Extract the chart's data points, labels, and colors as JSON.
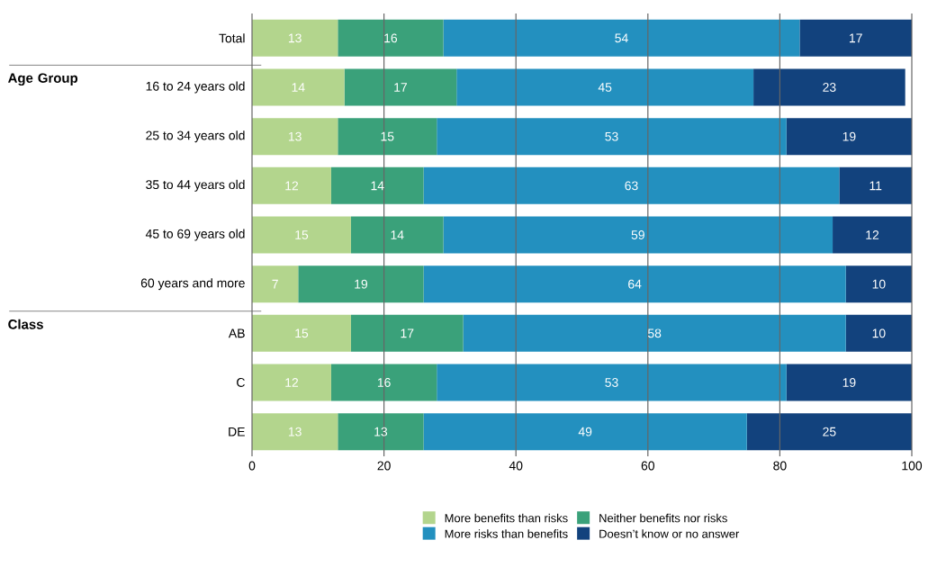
{
  "chart_data": {
    "type": "bar",
    "orientation": "horizontal",
    "stacked": true,
    "categories": [
      "Total",
      "16 to 24 years old",
      "25 to 34 years old",
      "35 to 44 years old",
      "45 to 69 years old",
      "60 years and more",
      "AB",
      "C",
      "DE"
    ],
    "series": [
      {
        "name": "More benefits than risks",
        "color": "#b3d58d",
        "values": [
          13,
          14,
          13,
          12,
          15,
          7,
          15,
          12,
          13
        ]
      },
      {
        "name": "Neither benefits nor risks",
        "color": "#3aa17a",
        "values": [
          16,
          17,
          15,
          14,
          14,
          19,
          17,
          16,
          13
        ]
      },
      {
        "name": "More risks than benefits",
        "color": "#2390bf",
        "values": [
          54,
          45,
          53,
          63,
          59,
          64,
          58,
          53,
          49
        ]
      },
      {
        "name": "Doesn’t know or no answer",
        "color": "#12427d",
        "values": [
          17,
          23,
          19,
          11,
          12,
          10,
          10,
          19,
          25
        ]
      }
    ],
    "annotations": [
      "Age Group",
      "Class"
    ],
    "xlim": [
      0,
      100
    ],
    "xticks": [
      0,
      20,
      40,
      60,
      80,
      100
    ],
    "grid": "x",
    "legend": "bottom",
    "data_labels": true
  }
}
